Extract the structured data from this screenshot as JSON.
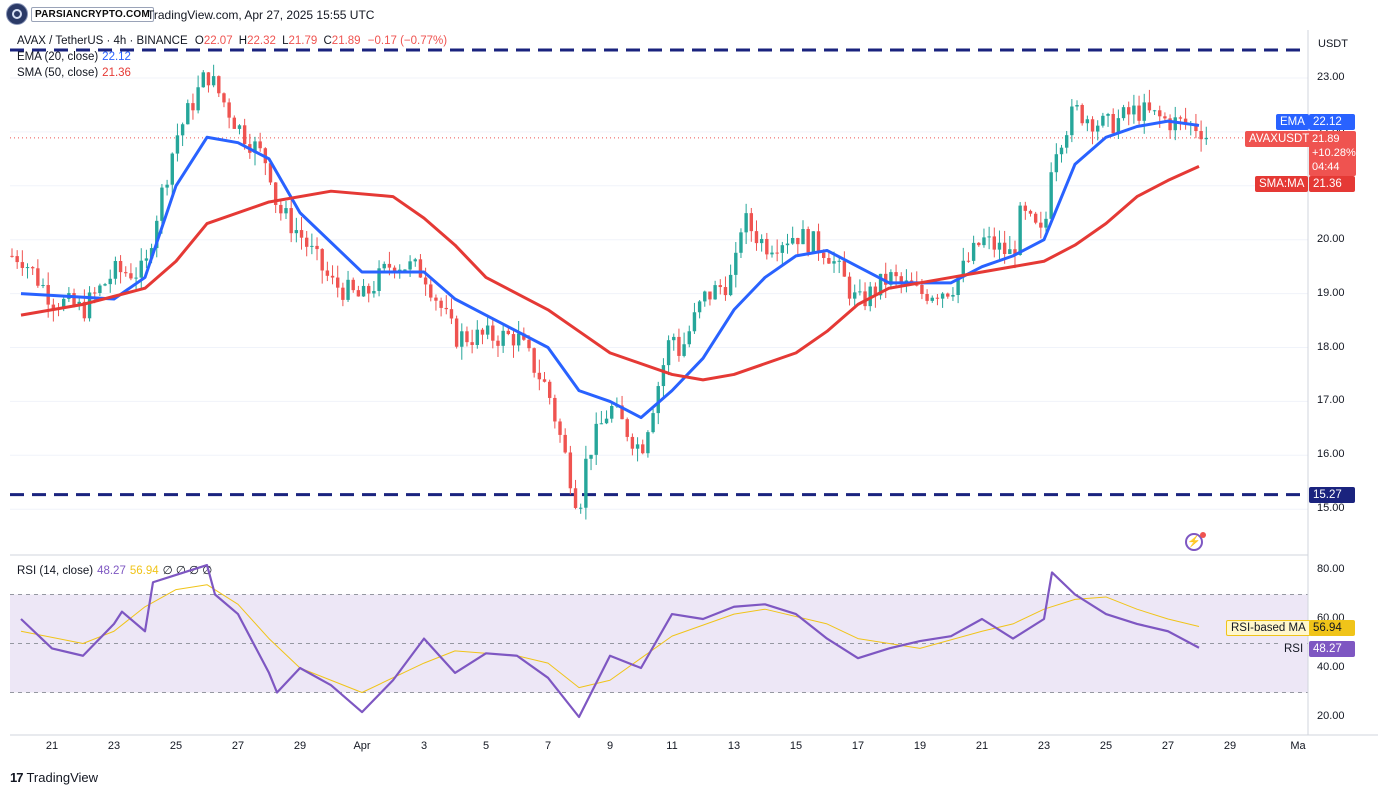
{
  "header": {
    "brand_text": "PARSIANCRYPTO.COM",
    "published_line": "TradingView.com, Apr 27, 2025 15:55 UTC"
  },
  "symbol_legend": {
    "symbol": "AVAX / TetherUS · 4h · BINANCE",
    "open_label": "O",
    "open": "22.07",
    "high_label": "H",
    "high": "22.32",
    "low_label": "L",
    "low": "21.79",
    "close_label": "C",
    "close": "21.89",
    "change": "−0.17 (−0.77%)"
  },
  "indicators": {
    "ema": {
      "label": "EMA (20, close)",
      "value": "22.12",
      "color": "#2962ff"
    },
    "sma": {
      "label": "SMA (50, close)",
      "value": "21.36",
      "color": "#e53935"
    },
    "rsi": {
      "label": "RSI (14, close)",
      "value": "48.27",
      "ma_value": "56.94",
      "extra": "∅ ∅ ∅ ∅",
      "color": "#7e57c2",
      "ma_color": "#f0c419"
    }
  },
  "price_axis": {
    "currency": "USDT",
    "ticks": [
      "23.00",
      "22.00",
      "21.00",
      "20.00",
      "19.00",
      "18.00",
      "17.00",
      "16.00",
      "15.00"
    ],
    "tags": {
      "ema_name": "EMA",
      "ema_value": "22.12",
      "symbol_name": "AVAXUSDT",
      "symbol_price": "21.89",
      "symbol_change": "+10.28%",
      "symbol_timer": "04:44",
      "sma_name": "SMA:MA",
      "sma_value": "21.36",
      "level_value": "15.27"
    }
  },
  "rsi_axis": {
    "ticks": [
      "80.00",
      "60.00",
      "40.00",
      "20.00"
    ],
    "tags": {
      "ma_name": "RSI-based MA",
      "ma_value": "56.94",
      "rsi_name": "RSI",
      "rsi_value": "48.27"
    }
  },
  "time_axis": {
    "ticks": [
      "21",
      "23",
      "25",
      "27",
      "29",
      "Apr",
      "3",
      "5",
      "7",
      "9",
      "11",
      "13",
      "15",
      "17",
      "19",
      "21",
      "23",
      "25",
      "27",
      "29",
      "Ma"
    ]
  },
  "footer": {
    "logo": "17",
    "name": "TradingView"
  },
  "colors": {
    "up": "#26a69a",
    "down": "#ef5350",
    "level_line": "#1a237e",
    "rsi_band": "#ede7f6"
  },
  "chart_data": {
    "type": "candlestick",
    "symbol": "AVAXUSDT",
    "timeframe": "4h",
    "y_range": [
      14.7,
      23.5
    ],
    "horizontal_levels": [
      23.5,
      15.27
    ],
    "price_path": [
      [
        "Mar 20",
        19.7
      ],
      [
        "Mar 21",
        18.9
      ],
      [
        "Mar 22",
        18.7
      ],
      [
        "Mar 23",
        19.4
      ],
      [
        "Mar 24",
        19.4
      ],
      [
        "Mar 24",
        20.2
      ],
      [
        "Mar 25",
        21.9
      ],
      [
        "Mar 26",
        23.1
      ],
      [
        "Mar 27",
        22.1
      ],
      [
        "Mar 28",
        21.4
      ],
      [
        "Mar 28",
        20.6
      ],
      [
        "Mar 29",
        20.1
      ],
      [
        "Mar 30",
        19.2
      ],
      [
        "Mar 31",
        18.9
      ],
      [
        "Apr 1",
        19.6
      ],
      [
        "Apr 2",
        19.4
      ],
      [
        "Apr 3",
        18.2
      ],
      [
        "Apr 4",
        18.2
      ],
      [
        "Apr 5",
        18.2
      ],
      [
        "Apr 6",
        17.2
      ],
      [
        "Apr 7",
        15.0
      ],
      [
        "Apr 7",
        16.0
      ],
      [
        "Apr 8",
        16.9
      ],
      [
        "Apr 9",
        16.1
      ],
      [
        "Apr 10",
        18.3
      ],
      [
        "Apr 10",
        17.9
      ],
      [
        "Apr 11",
        18.9
      ],
      [
        "Apr 12",
        19.3
      ],
      [
        "Apr 12",
        20.4
      ],
      [
        "Apr 13",
        19.9
      ],
      [
        "Apr 14",
        20.1
      ],
      [
        "Apr 15",
        19.8
      ],
      [
        "Apr 16",
        18.8
      ],
      [
        "Apr 17",
        19.3
      ],
      [
        "Apr 18",
        19.0
      ],
      [
        "Apr 19",
        19.1
      ],
      [
        "Apr 20",
        20.0
      ],
      [
        "Apr 21",
        19.7
      ],
      [
        "Apr 21",
        20.5
      ],
      [
        "Apr 22",
        20.0
      ],
      [
        "Apr 22",
        21.6
      ],
      [
        "Apr 23",
        22.4
      ],
      [
        "Apr 24",
        22.1
      ],
      [
        "Apr 25",
        22.4
      ],
      [
        "Apr 26",
        22.2
      ],
      [
        "Apr 27",
        22.1
      ],
      [
        "Apr 27",
        21.89
      ]
    ],
    "series": [
      {
        "name": "EMA (20, close)",
        "points": [
          [
            "Mar 20",
            19.0
          ],
          [
            "Mar 23",
            18.9
          ],
          [
            "Mar 24",
            19.3
          ],
          [
            "Mar 25",
            21.0
          ],
          [
            "Mar 26",
            21.9
          ],
          [
            "Mar 27",
            21.8
          ],
          [
            "Mar 28",
            21.5
          ],
          [
            "Mar 29",
            20.5
          ],
          [
            "Mar 31",
            19.4
          ],
          [
            "Apr 2",
            19.4
          ],
          [
            "Apr 3",
            18.9
          ],
          [
            "Apr 4",
            18.6
          ],
          [
            "Apr 5",
            18.3
          ],
          [
            "Apr 6",
            18.0
          ],
          [
            "Apr 7",
            17.2
          ],
          [
            "Apr 8",
            17.0
          ],
          [
            "Apr 9",
            16.7
          ],
          [
            "Apr 10",
            17.2
          ],
          [
            "Apr 11",
            17.8
          ],
          [
            "Apr 12",
            18.7
          ],
          [
            "Apr 13",
            19.3
          ],
          [
            "Apr 14",
            19.7
          ],
          [
            "Apr 15",
            19.8
          ],
          [
            "Apr 16",
            19.5
          ],
          [
            "Apr 17",
            19.2
          ],
          [
            "Apr 19",
            19.2
          ],
          [
            "Apr 20",
            19.5
          ],
          [
            "Apr 21",
            19.7
          ],
          [
            "Apr 22",
            20.0
          ],
          [
            "Apr 23",
            21.4
          ],
          [
            "Apr 24",
            21.9
          ],
          [
            "Apr 25",
            22.1
          ],
          [
            "Apr 26",
            22.2
          ],
          [
            "Apr 27",
            22.12
          ]
        ]
      },
      {
        "name": "SMA (50, close)",
        "points": [
          [
            "Mar 20",
            18.6
          ],
          [
            "Mar 22",
            18.8
          ],
          [
            "Mar 24",
            19.1
          ],
          [
            "Mar 25",
            19.6
          ],
          [
            "Mar 26",
            20.3
          ],
          [
            "Mar 28",
            20.7
          ],
          [
            "Mar 30",
            20.9
          ],
          [
            "Apr 1",
            20.8
          ],
          [
            "Apr 2",
            20.4
          ],
          [
            "Apr 3",
            19.9
          ],
          [
            "Apr 4",
            19.3
          ],
          [
            "Apr 6",
            18.7
          ],
          [
            "Apr 7",
            18.3
          ],
          [
            "Apr 8",
            17.9
          ],
          [
            "Apr 10",
            17.5
          ],
          [
            "Apr 11",
            17.4
          ],
          [
            "Apr 12",
            17.5
          ],
          [
            "Apr 14",
            17.9
          ],
          [
            "Apr 15",
            18.3
          ],
          [
            "Apr 16",
            18.8
          ],
          [
            "Apr 17",
            19.1
          ],
          [
            "Apr 19",
            19.3
          ],
          [
            "Apr 20",
            19.4
          ],
          [
            "Apr 21",
            19.5
          ],
          [
            "Apr 22",
            19.6
          ],
          [
            "Apr 23",
            19.9
          ],
          [
            "Apr 24",
            20.3
          ],
          [
            "Apr 25",
            20.8
          ],
          [
            "Apr 26",
            21.1
          ],
          [
            "Apr 27",
            21.36
          ]
        ]
      }
    ],
    "rsi": {
      "range": [
        15,
        85
      ],
      "band": [
        30,
        70
      ],
      "guide_levels": [
        30,
        50,
        70
      ],
      "rsi_points": [
        [
          "Mar 20",
          60
        ],
        [
          "Mar 21",
          48
        ],
        [
          "Mar 22",
          45
        ],
        [
          "Mar 23",
          58
        ],
        [
          "Mar 23",
          63
        ],
        [
          "Mar 24",
          55
        ],
        [
          "Mar 24",
          75
        ],
        [
          "Mar 25",
          78
        ],
        [
          "Mar 26",
          82
        ],
        [
          "Mar 26",
          70
        ],
        [
          "Mar 27",
          62
        ],
        [
          "Mar 28",
          38
        ],
        [
          "Mar 28",
          30
        ],
        [
          "Mar 29",
          40
        ],
        [
          "Mar 30",
          33
        ],
        [
          "Mar 31",
          22
        ],
        [
          "Apr 1",
          35
        ],
        [
          "Apr 2",
          52
        ],
        [
          "Apr 3",
          38
        ],
        [
          "Apr 4",
          46
        ],
        [
          "Apr 5",
          45
        ],
        [
          "Apr 6",
          36
        ],
        [
          "Apr 7",
          20
        ],
        [
          "Apr 8",
          45
        ],
        [
          "Apr 9",
          40
        ],
        [
          "Apr 10",
          62
        ],
        [
          "Apr 11",
          60
        ],
        [
          "Apr 12",
          65
        ],
        [
          "Apr 13",
          66
        ],
        [
          "Apr 14",
          62
        ],
        [
          "Apr 15",
          52
        ],
        [
          "Apr 16",
          44
        ],
        [
          "Apr 17",
          48
        ],
        [
          "Apr 18",
          51
        ],
        [
          "Apr 19",
          53
        ],
        [
          "Apr 20",
          60
        ],
        [
          "Apr 21",
          52
        ],
        [
          "Apr 22",
          60
        ],
        [
          "Apr 22",
          79
        ],
        [
          "Apr 23",
          70
        ],
        [
          "Apr 24",
          62
        ],
        [
          "Apr 25",
          58
        ],
        [
          "Apr 26",
          55
        ],
        [
          "Apr 27",
          48.27
        ]
      ],
      "ma_points": [
        [
          "Mar 20",
          55
        ],
        [
          "Mar 22",
          50
        ],
        [
          "Mar 23",
          55
        ],
        [
          "Mar 24",
          65
        ],
        [
          "Mar 25",
          72
        ],
        [
          "Mar 26",
          74
        ],
        [
          "Mar 27",
          66
        ],
        [
          "Mar 28",
          52
        ],
        [
          "Mar 29",
          40
        ],
        [
          "Mar 31",
          30
        ],
        [
          "Apr 2",
          42
        ],
        [
          "Apr 3",
          47
        ],
        [
          "Apr 5",
          45
        ],
        [
          "Apr 6",
          42
        ],
        [
          "Apr 7",
          32
        ],
        [
          "Apr 8",
          35
        ],
        [
          "Apr 9",
          44
        ],
        [
          "Apr 10",
          53
        ],
        [
          "Apr 12",
          62
        ],
        [
          "Apr 13",
          64
        ],
        [
          "Apr 15",
          58
        ],
        [
          "Apr 16",
          52
        ],
        [
          "Apr 18",
          48
        ],
        [
          "Apr 20",
          55
        ],
        [
          "Apr 21",
          58
        ],
        [
          "Apr 22",
          64
        ],
        [
          "Apr 23",
          68
        ],
        [
          "Apr 24",
          69
        ],
        [
          "Apr 25",
          64
        ],
        [
          "Apr 26",
          60
        ],
        [
          "Apr 27",
          56.94
        ]
      ]
    }
  }
}
